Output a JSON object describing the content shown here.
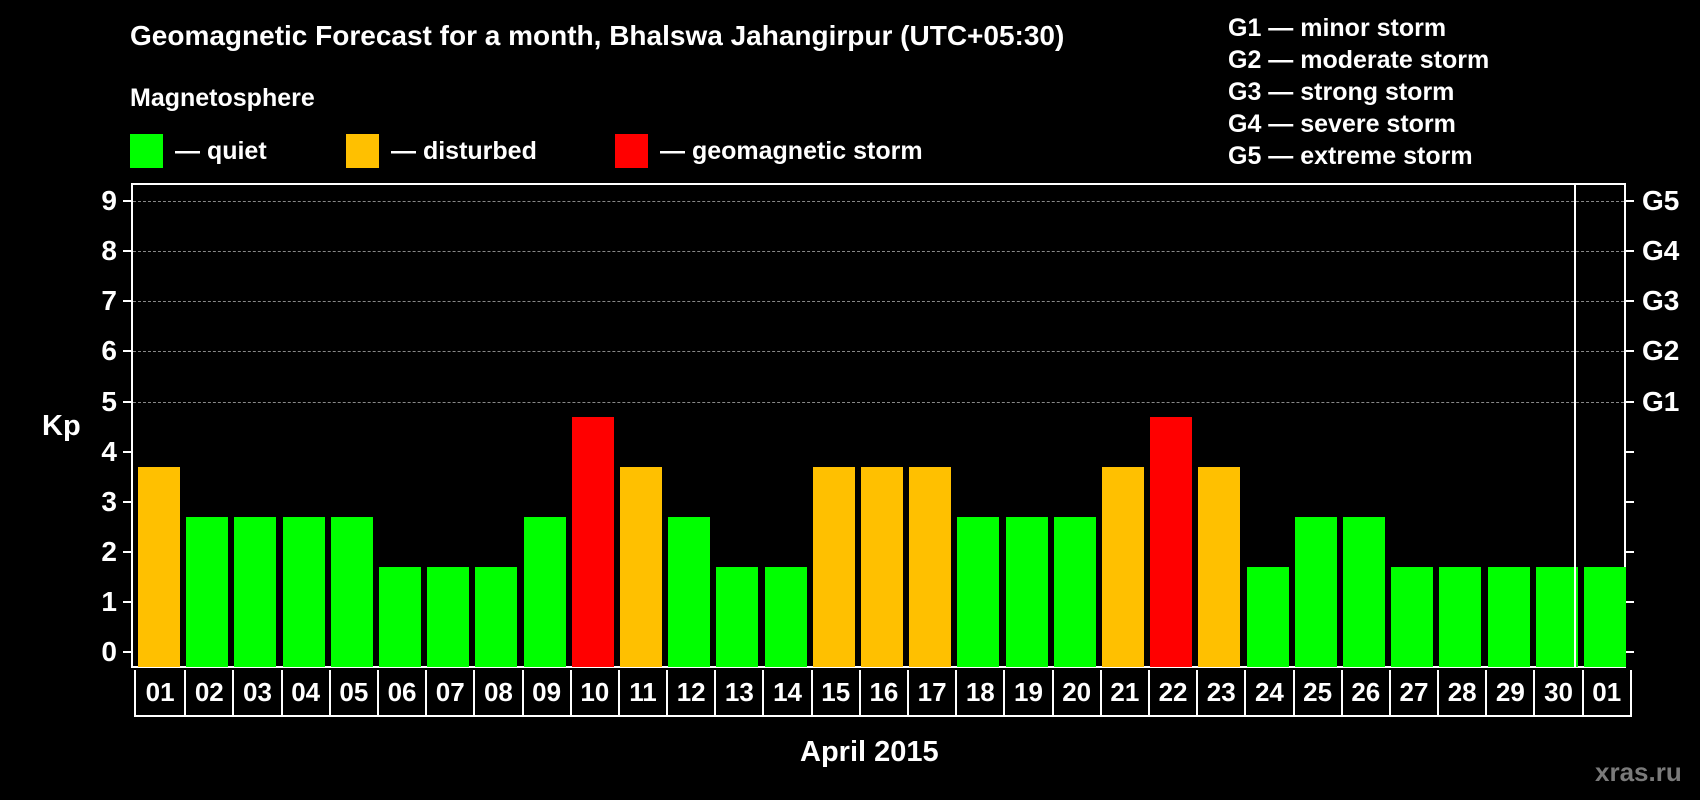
{
  "header": {
    "title": "Geomagnetic Forecast for a month, Bhalswa Jahangirpur (UTC+05:30)",
    "subtitle": "Magnetosphere"
  },
  "legend": [
    {
      "label": "— quiet",
      "color": "#00ff00"
    },
    {
      "label": "— disturbed",
      "color": "#ffc000"
    },
    {
      "label": "— geomagnetic storm",
      "color": "#ff0000"
    }
  ],
  "g_legend": [
    "G1 — minor storm",
    "G2 — moderate storm",
    "G3 — strong storm",
    "G4 — severe storm",
    "G5 — extreme storm"
  ],
  "axes": {
    "ylabel": "Kp",
    "yticks": [
      "0",
      "1",
      "2",
      "3",
      "4",
      "5",
      "6",
      "7",
      "8",
      "9"
    ],
    "right_labels": [
      {
        "kp": 5,
        "label": "G1"
      },
      {
        "kp": 6,
        "label": "G2"
      },
      {
        "kp": 7,
        "label": "G3"
      },
      {
        "kp": 8,
        "label": "G4"
      },
      {
        "kp": 9,
        "label": "G5"
      }
    ],
    "xlabel": "April 2015"
  },
  "watermark": "xras.ru",
  "chart_data": {
    "type": "bar",
    "title": "Geomagnetic Forecast for a month, Bhalswa Jahangirpur (UTC+05:30)",
    "xlabel": "April 2015",
    "ylabel": "Kp",
    "ylim": [
      0,
      9
    ],
    "grid": "dashed horizontal lines at Kp 5-9",
    "categories": [
      "01",
      "02",
      "03",
      "04",
      "05",
      "06",
      "07",
      "08",
      "09",
      "10",
      "11",
      "12",
      "13",
      "14",
      "15",
      "16",
      "17",
      "18",
      "19",
      "20",
      "21",
      "22",
      "23",
      "24",
      "25",
      "26",
      "27",
      "28",
      "29",
      "30",
      "01"
    ],
    "values": [
      4,
      3,
      3,
      3,
      3,
      2,
      2,
      2,
      3,
      5,
      4,
      3,
      2,
      2,
      4,
      4,
      4,
      3,
      3,
      3,
      4,
      5,
      4,
      2,
      3,
      3,
      2,
      2,
      2,
      2,
      2
    ],
    "status": [
      "disturbed",
      "quiet",
      "quiet",
      "quiet",
      "quiet",
      "quiet",
      "quiet",
      "quiet",
      "quiet",
      "storm",
      "disturbed",
      "quiet",
      "quiet",
      "quiet",
      "disturbed",
      "disturbed",
      "disturbed",
      "quiet",
      "quiet",
      "quiet",
      "disturbed",
      "storm",
      "disturbed",
      "quiet",
      "quiet",
      "quiet",
      "quiet",
      "quiet",
      "quiet",
      "quiet",
      "quiet"
    ],
    "colors": {
      "quiet": "#00ff00",
      "disturbed": "#ffc000",
      "storm": "#ff0000"
    },
    "legend": [
      "quiet",
      "disturbed",
      "geomagnetic storm"
    ],
    "right_axis": {
      "5": "G1",
      "6": "G2",
      "7": "G3",
      "8": "G4",
      "9": "G5"
    }
  }
}
